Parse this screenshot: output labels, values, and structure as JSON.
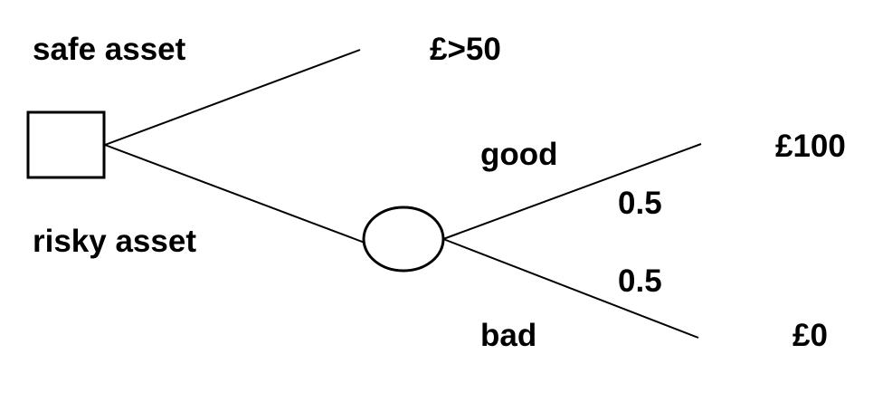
{
  "decision_tree": {
    "decision_node": {
      "shape": "square",
      "options": [
        {
          "label": "safe asset",
          "payoff": "£>50"
        },
        {
          "label": "risky asset"
        }
      ]
    },
    "chance_node": {
      "shape": "circle",
      "outcomes": [
        {
          "label": "good",
          "probability": "0.5",
          "payoff": "£100"
        },
        {
          "label": "bad",
          "probability": "0.5",
          "payoff": "£0"
        }
      ]
    }
  },
  "colors": {
    "line": "#000000",
    "background": "#ffffff"
  }
}
